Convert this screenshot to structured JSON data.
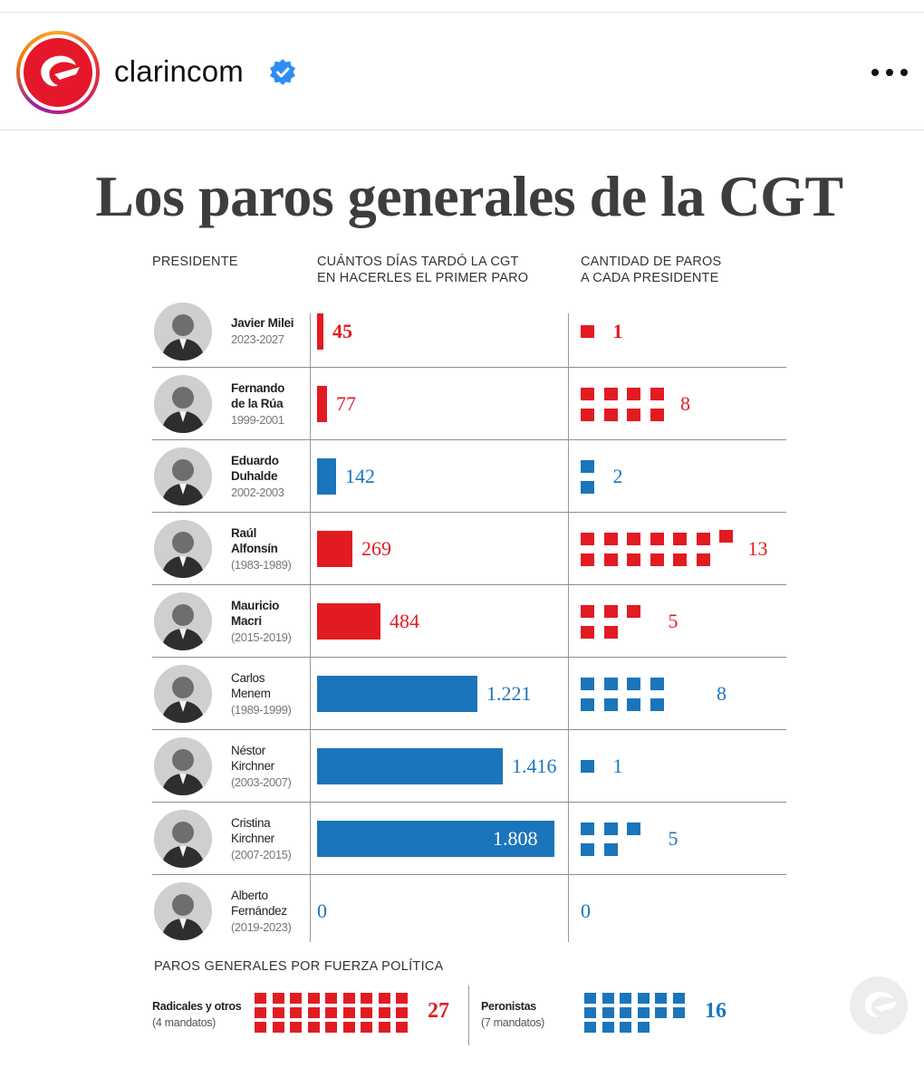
{
  "post": {
    "username": "clarincom",
    "verified_icon": "verified-badge-icon",
    "more_icon": "more-options-icon"
  },
  "infographic": {
    "title": "Los paros generales de la CGT",
    "col_president": "PRESIDENTE",
    "col_days_line1": "CUÁNTOS DÍAS TARDÓ LA CGT",
    "col_days_line2": "EN HACERLES EL PRIMER PARO",
    "col_strikes_line1": "CANTIDAD DE PAROS",
    "col_strikes_line2": "A CADA PRESIDENTE",
    "subtitle_force": "PAROS GENERALES POR FUERZA POLÍTICA"
  },
  "colors": {
    "radical": "#e21b23",
    "peronist": "#1b75bb",
    "title": "#3d3d3d"
  },
  "chart_data": {
    "type": "bar",
    "title": "Los paros generales de la CGT",
    "categories": [
      "Javier Milei",
      "Fernando de la Rúa",
      "Eduardo Duhalde",
      "Raúl Alfonsín",
      "Mauricio Macri",
      "Carlos Menem",
      "Néstor Kirchner",
      "Cristina Kirchner",
      "Alberto Fernández"
    ],
    "presidents": [
      {
        "name_lines": [
          "Javier Milei"
        ],
        "bold": true,
        "years": "2023-2027",
        "party": "other",
        "days": 45,
        "days_label": "45",
        "strikes": 1,
        "strikes_label": "1"
      },
      {
        "name_lines": [
          "Fernando",
          "de la Rúa"
        ],
        "bold": true,
        "years": "1999-2001",
        "party": "radical",
        "days": 77,
        "days_label": "77",
        "strikes": 8,
        "strikes_label": "8"
      },
      {
        "name_lines": [
          "Eduardo",
          "Duhalde"
        ],
        "bold": true,
        "years": "2002-2003",
        "party": "peronist",
        "days": 142,
        "days_label": "142",
        "strikes": 2,
        "strikes_label": "2"
      },
      {
        "name_lines": [
          "Raúl",
          "Alfonsín"
        ],
        "bold": true,
        "years": "(1983-1989)",
        "party": "radical",
        "days": 269,
        "days_label": "269",
        "strikes": 13,
        "strikes_label": "13"
      },
      {
        "name_lines": [
          "Mauricio",
          "Macri"
        ],
        "bold": true,
        "years": "(2015-2019)",
        "party": "radical",
        "days": 484,
        "days_label": "484",
        "strikes": 5,
        "strikes_label": "5"
      },
      {
        "name_lines": [
          "Carlos",
          "Menem"
        ],
        "bold": false,
        "years": "(1989-1999)",
        "party": "peronist",
        "days": 1221,
        "days_label": "1.221",
        "strikes": 8,
        "strikes_label": "8"
      },
      {
        "name_lines": [
          "Néstor",
          "Kirchner"
        ],
        "bold": false,
        "years": "(2003-2007)",
        "party": "peronist",
        "days": 1416,
        "days_label": "1.416",
        "strikes": 1,
        "strikes_label": "1"
      },
      {
        "name_lines": [
          "Cristina",
          "Kirchner"
        ],
        "bold": false,
        "years": "(2007-2015)",
        "party": "peronist",
        "days": 1808,
        "days_label": "1.808",
        "strikes": 5,
        "strikes_label": "5"
      },
      {
        "name_lines": [
          "Alberto",
          "Fernández"
        ],
        "bold": false,
        "years": "(2019-2023)",
        "party": "peronist",
        "days": 0,
        "days_label": "0",
        "strikes": 0,
        "strikes_label": "0"
      }
    ],
    "by_force": [
      {
        "label": "Radicales y otros",
        "note": "(4 mandatos)",
        "party": "radical",
        "strikes": 27,
        "strikes_label": "27"
      },
      {
        "label": "Peronistas",
        "note": "(7 mandatos)",
        "party": "peronist",
        "strikes": 16,
        "strikes_label": "16"
      }
    ]
  }
}
